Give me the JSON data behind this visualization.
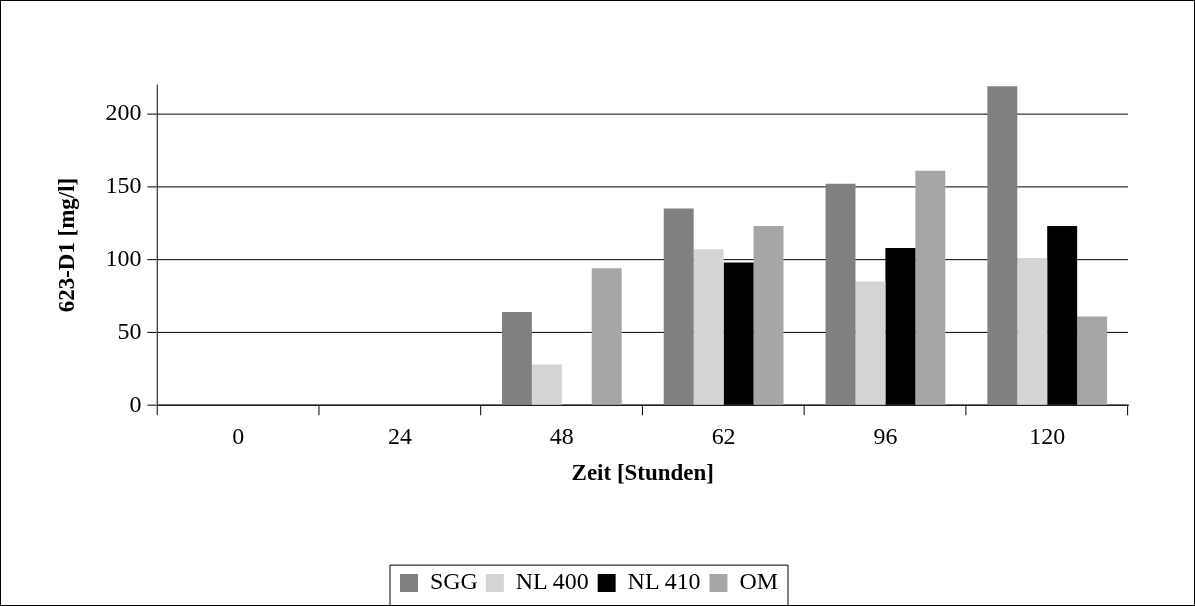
{
  "chart_data": {
    "type": "bar",
    "xlabel": "Zeit [Stunden]",
    "ylabel": "623-D1 [mg/l]",
    "categories": [
      "0",
      "24",
      "48",
      "62",
      "96",
      "120"
    ],
    "series": [
      {
        "name": "SGG",
        "color": "#808080",
        "values": [
          null,
          null,
          64,
          135,
          152,
          219
        ]
      },
      {
        "name": "NL 400",
        "color": "#d4d4d4",
        "values": [
          null,
          null,
          28,
          107,
          85,
          101
        ]
      },
      {
        "name": "NL 410",
        "color": "#000000",
        "values": [
          null,
          null,
          null,
          98,
          108,
          123
        ]
      },
      {
        "name": "OM",
        "color": "#a6a6a6",
        "values": [
          null,
          null,
          94,
          123,
          161,
          61
        ]
      }
    ],
    "ylim": [
      0,
      220
    ],
    "yticks": [
      0,
      50,
      100,
      150,
      200
    ],
    "grid": "y",
    "legend": "bottom"
  }
}
